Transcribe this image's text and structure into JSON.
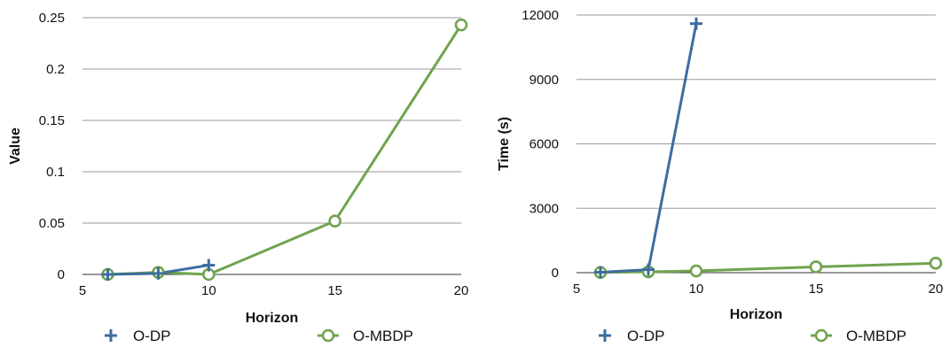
{
  "chart_data": [
    {
      "type": "line",
      "title": "",
      "xlabel": "Horizon",
      "ylabel": "Value",
      "xlim": [
        5,
        20
      ],
      "ylim": [
        0,
        0.25
      ],
      "x_ticks": [
        "5",
        "10",
        "15",
        "20"
      ],
      "y_ticks": [
        "0",
        "0.05",
        "0.1",
        "0.15",
        "0.2",
        "0.25"
      ],
      "grid": true,
      "legend_position": "bottom",
      "series": [
        {
          "name": "O-DP",
          "color": "#3D6DA0",
          "marker": "plus",
          "x": [
            6,
            8,
            10
          ],
          "y": [
            0.0,
            0.001,
            0.009
          ]
        },
        {
          "name": "O-MBDP",
          "color": "#70A34F",
          "marker": "circle",
          "x": [
            6,
            8,
            10,
            15,
            20
          ],
          "y": [
            0.0,
            0.002,
            0.0,
            0.052,
            0.243
          ]
        }
      ]
    },
    {
      "type": "line",
      "title": "",
      "xlabel": "Horizon",
      "ylabel": "Time (s)",
      "xlim": [
        5,
        20
      ],
      "ylim": [
        0,
        12000
      ],
      "x_ticks": [
        "5",
        "10",
        "15",
        "20"
      ],
      "y_ticks": [
        "0",
        "3000",
        "6000",
        "9000",
        "12000"
      ],
      "grid": true,
      "legend_position": "bottom",
      "series": [
        {
          "name": "O-DP",
          "color": "#3D6DA0",
          "marker": "plus",
          "x": [
            6,
            8,
            10
          ],
          "y": [
            20,
            140,
            11600
          ]
        },
        {
          "name": "O-MBDP",
          "color": "#70A34F",
          "marker": "circle",
          "x": [
            6,
            8,
            10,
            15,
            20
          ],
          "y": [
            10,
            40,
            80,
            270,
            440
          ]
        }
      ]
    }
  ]
}
